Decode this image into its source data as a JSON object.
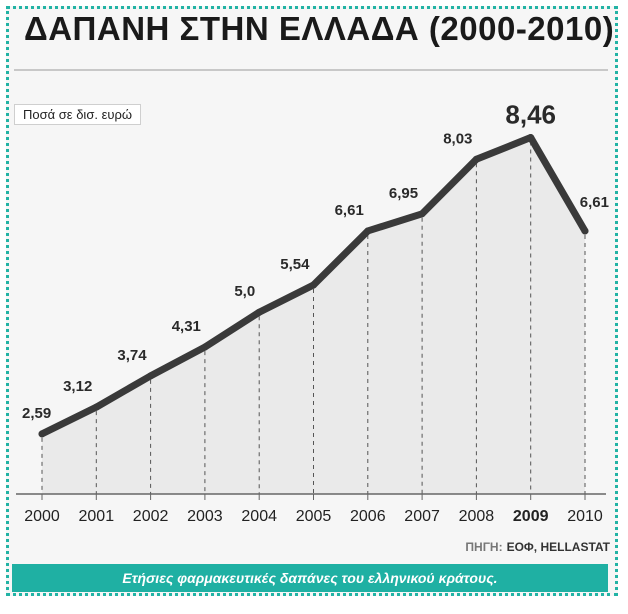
{
  "chart_data": {
    "type": "line",
    "title": "ΔΑΠΑΝΗ ΣΤΗΝ ΕΛΛΑΔΑ (2000-2010)",
    "unit_label": "Ποσά σε δισ. ευρώ",
    "categories": [
      "2000",
      "2001",
      "2002",
      "2003",
      "2004",
      "2005",
      "2006",
      "2007",
      "2008",
      "2009",
      "2010"
    ],
    "values": [
      2.59,
      3.12,
      3.74,
      4.31,
      5.0,
      5.54,
      6.61,
      6.95,
      8.03,
      8.46,
      6.61
    ],
    "value_labels": [
      "2,59",
      "3,12",
      "3,74",
      "4,31",
      "5,0",
      "5,54",
      "6,61",
      "6,95",
      "8,03",
      "8,46",
      "6,61"
    ],
    "highlight_category": "2009",
    "ylim": [
      1.4,
      9.6
    ],
    "grid": "vertical-dashed"
  },
  "source": {
    "label": "ΠΗΓΗ:",
    "text": "ΕΟΦ, HELLASTAT"
  },
  "caption": "Ετήσιες φαρμακευτικές δαπάνες του ελληνικού κράτους.",
  "colors": {
    "line": "#3a3a3a",
    "accent": "#1fb0a3",
    "area": "#eaeaea"
  }
}
